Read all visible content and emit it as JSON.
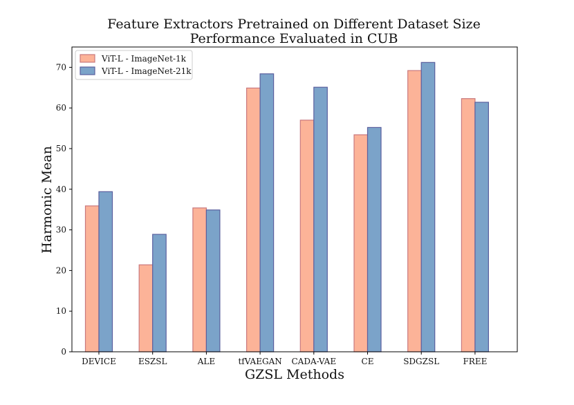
{
  "chart_data": {
    "type": "bar",
    "title": [
      "Feature Extractors Pretrained on Different Dataset Size",
      "Performance Evaluated in CUB"
    ],
    "xlabel": "GZSL Methods",
    "ylabel": "Harmonic Mean",
    "ylim": [
      0,
      75
    ],
    "yticks": [
      0,
      10,
      20,
      30,
      40,
      50,
      60,
      70
    ],
    "grid": false,
    "legend_position": "top-left",
    "categories": [
      "DEVICE",
      "ESZSL",
      "ALE",
      "tfVAEGAN",
      "CADA-VAE",
      "CE",
      "SDGZSL",
      "FREE"
    ],
    "series": [
      {
        "name": "ViT-L - ImageNet-1k",
        "color": "#fcb398",
        "edge_color": "#c9787d",
        "values": [
          35.9,
          21.4,
          35.4,
          64.9,
          57.0,
          53.4,
          69.2,
          62.3
        ]
      },
      {
        "name": "ViT-L - ImageNet-21k",
        "color": "#7ba3c9",
        "edge_color": "#5a5f9e",
        "values": [
          39.4,
          28.9,
          34.9,
          68.4,
          65.1,
          55.2,
          71.2,
          61.4
        ]
      }
    ]
  }
}
